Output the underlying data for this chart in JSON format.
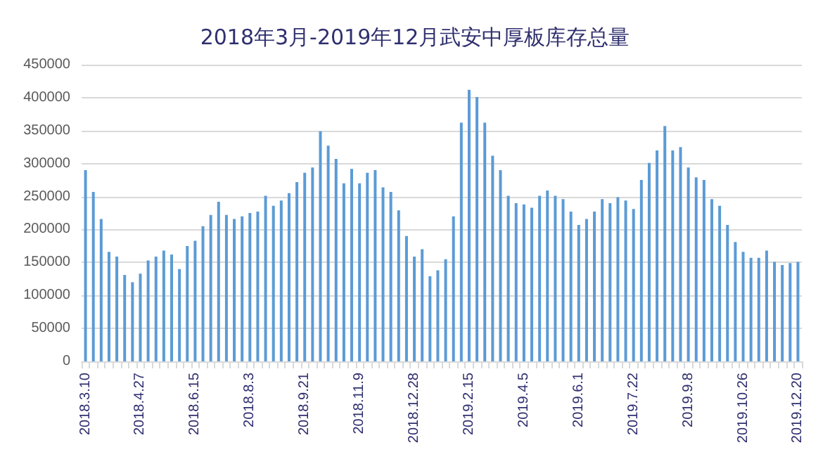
{
  "chart_data": {
    "type": "bar",
    "title": "2018年3月-2019年12月武安中厚板库存总量",
    "categories": [
      "2018.3.10",
      null,
      null,
      null,
      null,
      null,
      null,
      "2018.4.27",
      null,
      null,
      null,
      null,
      null,
      null,
      "2018.6.15",
      null,
      null,
      null,
      null,
      null,
      null,
      "2018.8.3",
      null,
      null,
      null,
      null,
      null,
      null,
      "2018.9.21",
      null,
      null,
      null,
      null,
      null,
      null,
      "2018.11.9",
      null,
      null,
      null,
      null,
      null,
      null,
      "2018.12.28",
      null,
      null,
      null,
      null,
      null,
      null,
      "2019.2.15",
      null,
      null,
      null,
      null,
      null,
      null,
      "2019.4.5",
      null,
      null,
      null,
      null,
      null,
      null,
      "2019.6.1",
      null,
      null,
      null,
      null,
      null,
      null,
      "2019.7.22",
      null,
      null,
      null,
      null,
      null,
      null,
      "2019.9.8",
      null,
      null,
      null,
      null,
      null,
      null,
      "2019.10.26",
      null,
      null,
      null,
      null,
      null,
      null,
      "2019.12.20"
    ],
    "values": [
      290000,
      257000,
      216000,
      166000,
      159000,
      131000,
      120000,
      133000,
      153000,
      159000,
      168000,
      162000,
      140000,
      175000,
      183000,
      205000,
      222000,
      242000,
      222000,
      216000,
      220000,
      225000,
      227000,
      251000,
      236000,
      244000,
      255000,
      272000,
      286000,
      294000,
      349000,
      327000,
      307000,
      270000,
      292000,
      270000,
      286000,
      290000,
      264000,
      257000,
      229000,
      190000,
      159000,
      170000,
      129000,
      138000,
      155000,
      220000,
      362000,
      412000,
      401000,
      362000,
      312000,
      290000,
      251000,
      240000,
      238000,
      233000,
      251000,
      259000,
      251000,
      246000,
      227000,
      207000,
      216000,
      227000,
      246000,
      240000,
      249000,
      244000,
      231000,
      275000,
      301000,
      320000,
      357000,
      320000,
      325000,
      294000,
      279000,
      275000,
      246000,
      236000,
      207000,
      181000,
      166000,
      157000,
      157000,
      168000,
      151000,
      146000,
      149000,
      151000
    ],
    "color": "#5b9bd5",
    "ylim": [
      0,
      450000
    ],
    "yticks": [
      0,
      50000,
      100000,
      150000,
      200000,
      250000,
      300000,
      350000,
      400000,
      450000
    ],
    "grid": "y"
  }
}
